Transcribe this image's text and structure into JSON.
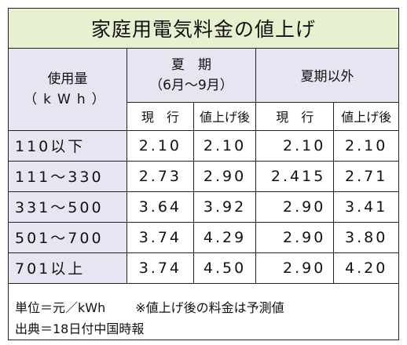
{
  "title": "家庭用電気料金の値上げ",
  "header": {
    "usage_label": "使用量",
    "usage_unit": "（kWh）",
    "summer_label": "夏　期",
    "summer_months": "（6月～9月）",
    "offseason_label": "夏期以外",
    "current_label": "現　行",
    "after_label": "値上げ後"
  },
  "rows": [
    {
      "range": "110以下",
      "summer_current": "2.10",
      "summer_after": "2.10",
      "off_current": "2.10",
      "off_after": "2.10"
    },
    {
      "range": "111～330",
      "summer_current": "2.73",
      "summer_after": "2.90",
      "off_current": "2.415",
      "off_after": "2.71"
    },
    {
      "range": "331～500",
      "summer_current": "3.64",
      "summer_after": "3.92",
      "off_current": "2.90",
      "off_after": "3.41"
    },
    {
      "range": "501～700",
      "summer_current": "3.74",
      "summer_after": "4.29",
      "off_current": "2.90",
      "off_after": "3.80"
    },
    {
      "range": "701以上",
      "summer_current": "3.74",
      "summer_after": "4.50",
      "off_current": "2.90",
      "off_after": "4.20"
    }
  ],
  "footer": {
    "unit_note": "単位＝元／kWh",
    "forecast_note": "※値上げ後の料金は予測値",
    "source_note": "出典＝18日付中国時報"
  }
}
